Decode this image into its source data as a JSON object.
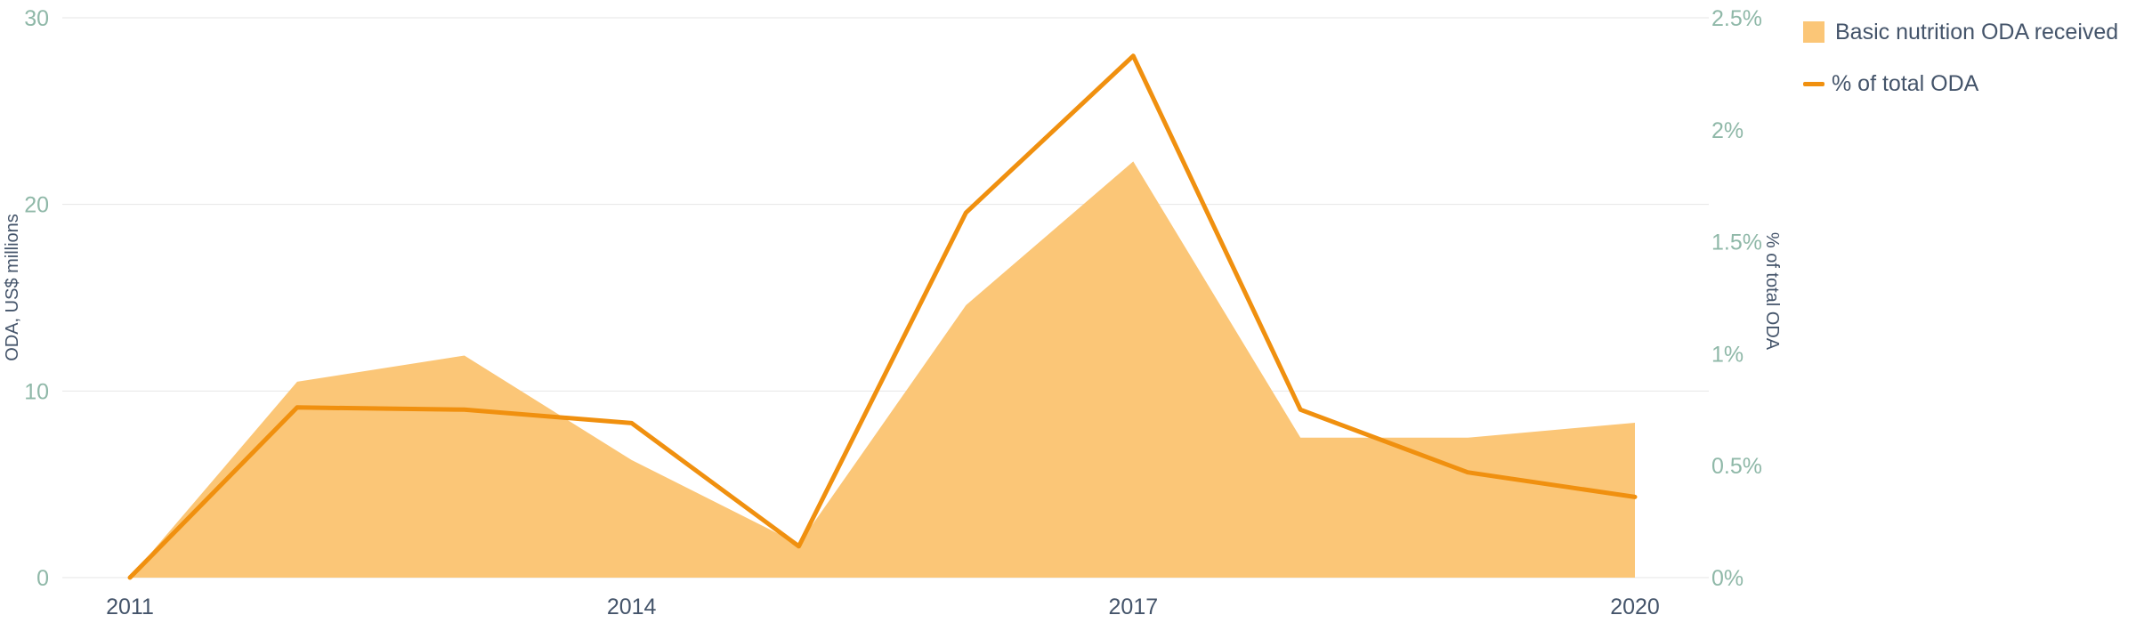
{
  "colors": {
    "area": "#fbc677",
    "line": "#f0900f",
    "left_tick": "#8fb8a8",
    "right_tick": "#8fb8a8",
    "x_tick": "#44546a",
    "grid": "#e6e6e6"
  },
  "chart_data": {
    "type": "area",
    "x": [
      2011,
      2012,
      2013,
      2014,
      2015,
      2016,
      2017,
      2018,
      2019,
      2020
    ],
    "x_tick_labels": [
      "2011",
      "2014",
      "2017",
      "2020"
    ],
    "x_tick_values": [
      2011,
      2014,
      2017,
      2020
    ],
    "series": [
      {
        "name": "Basic nutrition ODA received",
        "type": "area",
        "axis": "left",
        "values": [
          0,
          10.5,
          11.9,
          6.3,
          1.8,
          14.6,
          22.3,
          7.5,
          7.5,
          8.3
        ]
      },
      {
        "name": "% of total ODA",
        "type": "line",
        "axis": "right",
        "values": [
          0,
          0.76,
          0.75,
          0.69,
          0.14,
          1.63,
          2.33,
          0.75,
          0.47,
          0.36
        ]
      }
    ],
    "ylabel": "ODA, US$ millions",
    "ylim": [
      0,
      30
    ],
    "y_ticks": [
      "0",
      "10",
      "20",
      "30"
    ],
    "y_tick_values": [
      0,
      10,
      20,
      30
    ],
    "y2label": "% of total ODA",
    "y2lim": [
      0,
      2.5
    ],
    "y2_ticks": [
      "0%",
      "0.5%",
      "1%",
      "1.5%",
      "2%",
      "2.5%"
    ],
    "y2_tick_values": [
      0,
      0.5,
      1,
      1.5,
      2,
      2.5
    ],
    "grid": true,
    "legend": "top-right"
  }
}
